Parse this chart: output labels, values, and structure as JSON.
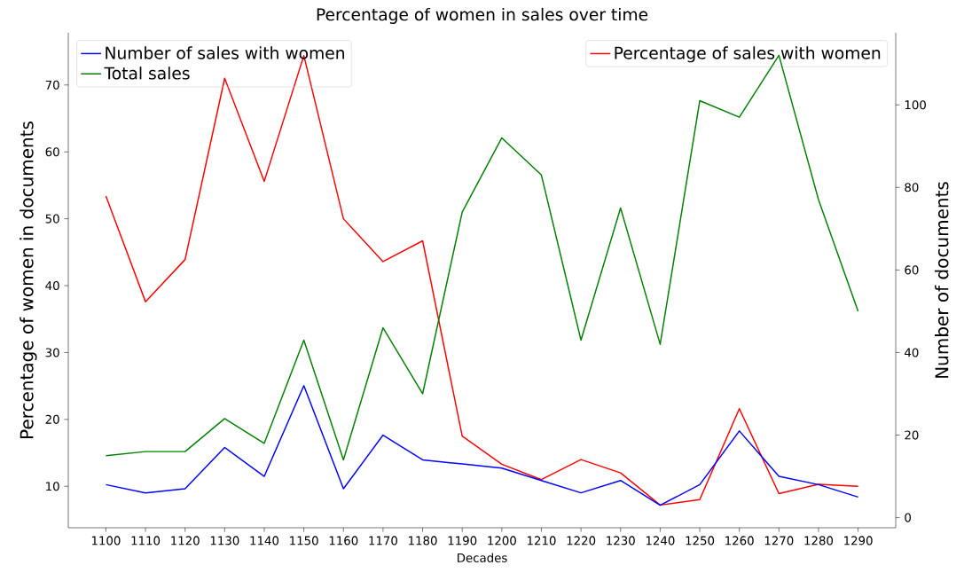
{
  "chart_data": {
    "type": "line",
    "title": "Percentage of women in sales over time",
    "xlabel": "Decades",
    "ylabel": "Percentage of women in documents",
    "y2label": "Number of documents",
    "categories": [
      "1100",
      "1110",
      "1120",
      "1130",
      "1140",
      "1150",
      "1160",
      "1170",
      "1180",
      "1190",
      "1200",
      "1210",
      "1220",
      "1230",
      "1240",
      "1250",
      "1260",
      "1270",
      "1280",
      "1290"
    ],
    "series": [
      {
        "name": "Percentage of sales with women",
        "color": "#ff0000",
        "values": [
          53.4,
          37.6,
          43.9,
          71,
          55.6,
          74.4,
          50,
          43.6,
          46.7,
          17.5,
          13.3,
          11,
          14,
          12,
          7.2,
          8,
          21.6,
          8.9,
          10.3,
          10
        ]
      },
      {
        "name": "Number of sales with women",
        "color": "#0000ff",
        "axis": "y2",
        "values": [
          8,
          6,
          7,
          17,
          10,
          32,
          7,
          20,
          14,
          13,
          12,
          9,
          6,
          9,
          3,
          8,
          21,
          10,
          8,
          5
        ]
      },
      {
        "name": "Total sales",
        "color": "#008000",
        "axis": "y2",
        "values": [
          15,
          16,
          16,
          24,
          18,
          43,
          14,
          46,
          30,
          74,
          92,
          83,
          43,
          75,
          42,
          101,
          97,
          112,
          77,
          50
        ]
      }
    ],
    "ylim": [
      3.8,
      77.8
    ],
    "yticks": [
      10,
      20,
      30,
      40,
      50,
      60,
      70
    ],
    "y2lim": [
      -2.45,
      117.45
    ],
    "y2ticks": [
      0,
      20,
      40,
      60,
      80,
      100
    ],
    "legend": "top right",
    "grid": false
  }
}
